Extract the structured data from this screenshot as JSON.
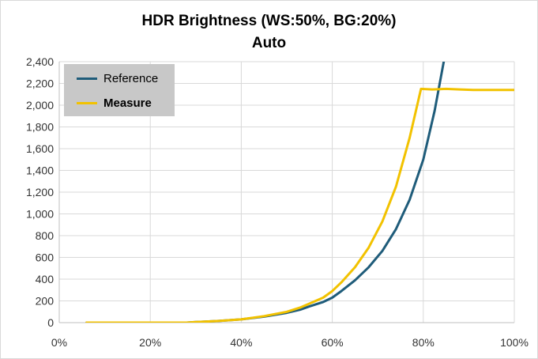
{
  "chart_data": {
    "type": "line",
    "title": "HDR Brightness (WS:50%, BG:20%)",
    "subtitle": "Auto",
    "xlabel": "",
    "ylabel": "",
    "xlim": [
      0,
      100
    ],
    "ylim": [
      0,
      2400
    ],
    "x_ticks": [
      "0%",
      "20%",
      "40%",
      "60%",
      "80%",
      "100%"
    ],
    "y_ticks": [
      "0",
      "200",
      "400",
      "600",
      "800",
      "1,000",
      "1,200",
      "1,400",
      "1,600",
      "1,800",
      "2,000",
      "2,200",
      "2,400"
    ],
    "grid": true,
    "legend_position": "top-left",
    "series": [
      {
        "name": "Reference",
        "color": "#1f5c7a",
        "x": [
          6,
          10,
          20,
          28,
          30,
          35,
          40,
          45,
          50,
          53,
          55,
          58,
          60,
          62,
          65,
          68,
          71,
          74,
          77,
          80,
          82.5,
          84.5
        ],
        "y": [
          0,
          0,
          0,
          0,
          5,
          15,
          30,
          55,
          90,
          120,
          150,
          190,
          230,
          290,
          390,
          510,
          660,
          860,
          1130,
          1500,
          1950,
          2400
        ]
      },
      {
        "name": "Measure",
        "color": "#f2c200",
        "bold": true,
        "x": [
          6,
          10,
          20,
          28,
          30,
          35,
          40,
          45,
          50,
          53,
          55,
          58,
          60,
          62,
          65,
          68,
          71,
          74,
          77,
          79.5,
          82,
          85,
          88,
          91,
          95,
          100
        ],
        "y": [
          0,
          0,
          0,
          0,
          5,
          15,
          30,
          60,
          100,
          140,
          175,
          230,
          290,
          370,
          510,
          690,
          930,
          1250,
          1700,
          2150,
          2145,
          2150,
          2145,
          2140,
          2140,
          2140
        ]
      }
    ]
  }
}
